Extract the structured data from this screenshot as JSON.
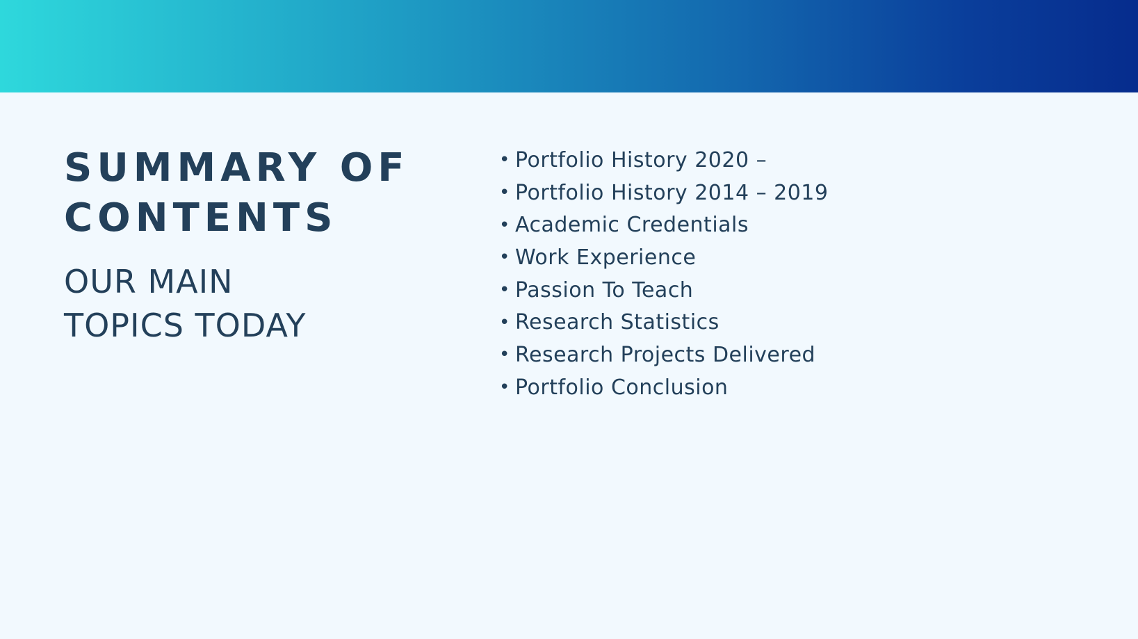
{
  "slide": {
    "title": "SUMMARY OF\nCONTENTS",
    "subtitle": "OUR MAIN\nTOPICS TODAY",
    "bullet_glyph": "•",
    "topics": [
      "Portfolio History 2020 –",
      "Portfolio History 2014 – 2019",
      "Academic Credentials",
      "Work Experience",
      "Passion To Teach",
      "Research Statistics",
      "Research Projects Delivered",
      "Portfolio Conclusion"
    ]
  },
  "colors": {
    "background": "#f2f9fe",
    "text": "#23405a",
    "gradient_start": "#2ed8dc",
    "gradient_end": "#062c8d"
  }
}
